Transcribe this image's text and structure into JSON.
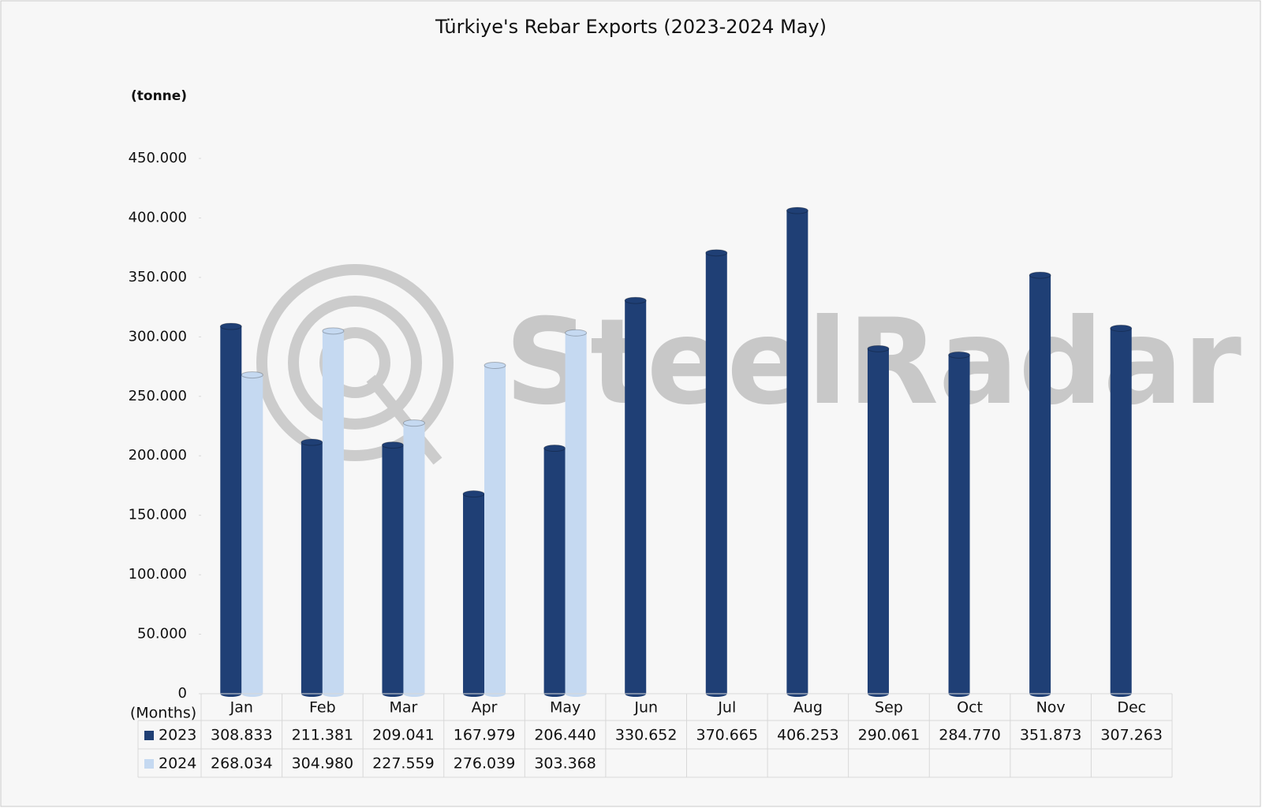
{
  "chart_data": {
    "type": "bar",
    "title": "Türkiye's Rebar Exports (2023-2024 May)",
    "y_axis_label": "(tonne)",
    "x_axis_label": "(Months)",
    "watermark": "SteelRadar",
    "categories": [
      "Jan",
      "Feb",
      "Mar",
      "Apr",
      "May",
      "Jun",
      "Jul",
      "Aug",
      "Sep",
      "Oct",
      "Nov",
      "Dec"
    ],
    "series": [
      {
        "name": "2023",
        "color": "#1f3f75",
        "values": [
          308833,
          211381,
          209041,
          167979,
          206440,
          330652,
          370665,
          406253,
          290061,
          284770,
          351873,
          307263
        ],
        "value_labels": [
          "308.833",
          "211.381",
          "209.041",
          "167.979",
          "206.440",
          "330.652",
          "370.665",
          "406.253",
          "290.061",
          "284.770",
          "351.873",
          "307.263"
        ]
      },
      {
        "name": "2024",
        "color": "#c5d9f1",
        "values": [
          268034,
          304980,
          227559,
          276039,
          303368,
          null,
          null,
          null,
          null,
          null,
          null,
          null
        ],
        "value_labels": [
          "268.034",
          "304.980",
          "227.559",
          "276.039",
          "303.368",
          null,
          null,
          null,
          null,
          null,
          null,
          null
        ]
      }
    ],
    "ylim": [
      0,
      450000
    ],
    "yticks": [
      0,
      {
        "value": 50000,
        "label": "50.000"
      },
      {
        "value": 100000,
        "label": "100.000"
      },
      {
        "value": 150000,
        "label": "150.000"
      },
      {
        "value": 200000,
        "label": "200.000"
      },
      {
        "value": 250000,
        "label": "250.000"
      },
      {
        "value": 300000,
        "label": "300.000"
      },
      {
        "value": 350000,
        "label": "350.000"
      },
      {
        "value": 400000,
        "label": "400.000"
      },
      {
        "value": 450000,
        "label": "450.000"
      }
    ],
    "grid": false
  }
}
